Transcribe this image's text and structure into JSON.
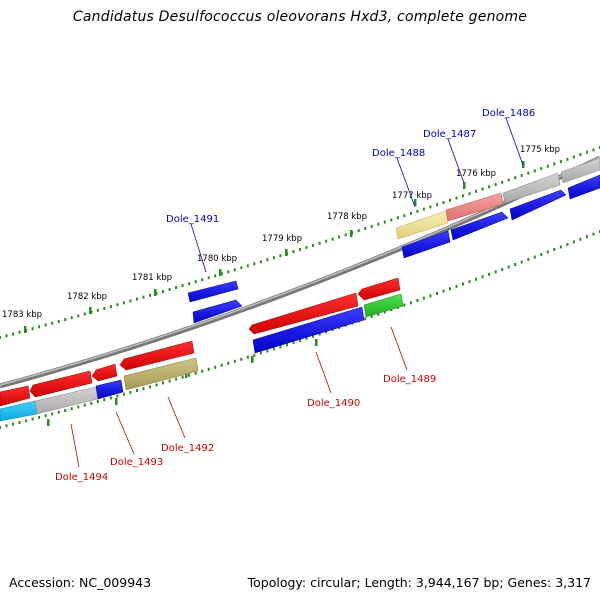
{
  "title": "Candidatus Desulfococcus oleovorans Hxd3, complete genome",
  "footer": {
    "accession": "Accession: NC_009943",
    "topology": "Topology: circular; Length: 3,944,167 bp; Genes: 3,317"
  },
  "colors": {
    "backbone": "#808080",
    "tick": "#2a8a1f",
    "label_forward": "#0000cc",
    "label_reverse": "#cc0000"
  },
  "kbp_labels": [
    "1775 kbp",
    "1776 kbp",
    "1777 kbp",
    "1778 kbp",
    "1779 kbp",
    "1780 kbp",
    "1781 kbp",
    "1782 kbp",
    "1783 kbp"
  ],
  "gene_labels": [
    {
      "name": "Dole_1486",
      "strand": "forward"
    },
    {
      "name": "Dole_1487",
      "strand": "forward"
    },
    {
      "name": "Dole_1488",
      "strand": "forward"
    },
    {
      "name": "Dole_1491",
      "strand": "forward"
    },
    {
      "name": "Dole_1489",
      "strand": "reverse"
    },
    {
      "name": "Dole_1490",
      "strand": "reverse"
    },
    {
      "name": "Dole_1492",
      "strand": "reverse"
    },
    {
      "name": "Dole_1493",
      "strand": "reverse"
    },
    {
      "name": "Dole_1494",
      "strand": "reverse"
    }
  ],
  "feature_colors": [
    "blue",
    "red",
    "grey",
    "light-red",
    "khaki",
    "olive",
    "green",
    "cyan"
  ]
}
